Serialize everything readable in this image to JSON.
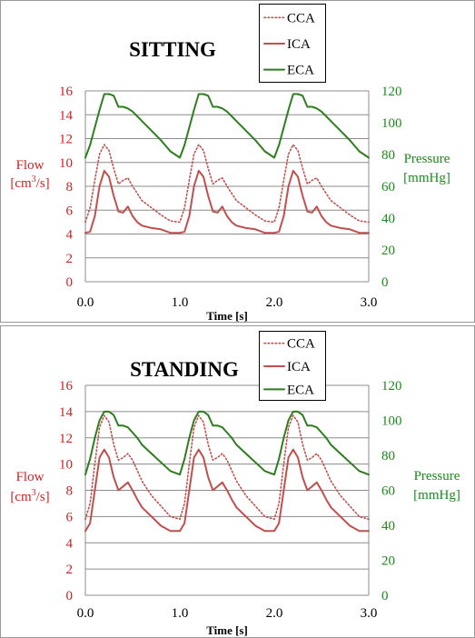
{
  "chart_data": [
    {
      "type": "line",
      "title": "SITTING",
      "xlabel": "Time [s]",
      "ylabel": "Flow [cm³/s]",
      "ylabel_parts": [
        "Flow",
        "[cm",
        "3",
        "/s]"
      ],
      "y2label": "Pressure [mmHg]",
      "y2label_parts": [
        "Pressure",
        "[mmHg]"
      ],
      "xlim": [
        0,
        3
      ],
      "ylim": [
        0,
        16
      ],
      "y2lim": [
        0,
        120
      ],
      "xticks": [
        "0.0",
        "1.0",
        "2.0",
        "3.0"
      ],
      "xtick_values": [
        0,
        1,
        2,
        3
      ],
      "yticks": [
        "0",
        "2",
        "4",
        "6",
        "8",
        "10",
        "12",
        "14",
        "16"
      ],
      "ytick_values": [
        0,
        2,
        4,
        6,
        8,
        10,
        12,
        14,
        16
      ],
      "y2ticks": [
        "0",
        "20",
        "40",
        "60",
        "80",
        "100",
        "120"
      ],
      "y2tick_values": [
        0,
        20,
        40,
        60,
        80,
        100,
        120
      ],
      "grid": true,
      "legend_position": "top-right",
      "series": [
        {
          "name": "CCA",
          "axis": "left",
          "color": "#c0504d",
          "style": "dotted",
          "x": [
            0.0,
            0.05,
            0.1,
            0.15,
            0.2,
            0.25,
            0.3,
            0.35,
            0.4,
            0.45,
            0.5,
            0.55,
            0.6,
            0.7,
            0.8,
            0.9,
            1.0
          ],
          "y": [
            5.0,
            6.2,
            8.5,
            10.7,
            11.5,
            11.0,
            9.5,
            8.2,
            8.5,
            8.7,
            8.0,
            7.4,
            6.8,
            6.2,
            5.6,
            5.1,
            5.0
          ]
        },
        {
          "name": "ICA",
          "axis": "left",
          "color": "#c0504d",
          "style": "solid",
          "x": [
            0.0,
            0.05,
            0.1,
            0.15,
            0.2,
            0.25,
            0.3,
            0.35,
            0.4,
            0.45,
            0.5,
            0.55,
            0.6,
            0.7,
            0.8,
            0.9,
            1.0
          ],
          "y": [
            4.1,
            4.2,
            5.5,
            8.0,
            9.3,
            8.8,
            7.2,
            5.9,
            5.8,
            6.3,
            5.5,
            5.0,
            4.7,
            4.5,
            4.4,
            4.1,
            4.1
          ]
        },
        {
          "name": "ECA",
          "axis": "right",
          "color": "#2e7d1f",
          "style": "solid",
          "x": [
            0.0,
            0.05,
            0.1,
            0.15,
            0.2,
            0.25,
            0.3,
            0.35,
            0.4,
            0.45,
            0.5,
            0.55,
            0.6,
            0.7,
            0.8,
            0.9,
            1.0
          ],
          "y": [
            78,
            86,
            97,
            108,
            118,
            118,
            117,
            110,
            110,
            109,
            107,
            104,
            101,
            95,
            89,
            82,
            78
          ]
        }
      ]
    },
    {
      "type": "line",
      "title": "STANDING",
      "xlabel": "Time [s]",
      "ylabel": "Flow [cm³/s]",
      "ylabel_parts": [
        "Flow",
        "[cm",
        "3",
        "/s]"
      ],
      "y2label": "Pressure [mmHg]",
      "y2label_parts": [
        "Pressure",
        "[mmHg]"
      ],
      "xlim": [
        0,
        3
      ],
      "ylim": [
        0,
        16
      ],
      "y2lim": [
        0,
        120
      ],
      "xticks": [
        "0.0",
        "1.0",
        "2.0",
        "3.0"
      ],
      "xtick_values": [
        0,
        1,
        2,
        3
      ],
      "yticks": [
        "0",
        "2",
        "4",
        "6",
        "8",
        "10",
        "12",
        "14",
        "16"
      ],
      "ytick_values": [
        0,
        2,
        4,
        6,
        8,
        10,
        12,
        14,
        16
      ],
      "y2ticks": [
        "0",
        "20",
        "40",
        "60",
        "80",
        "100",
        "120"
      ],
      "y2tick_values": [
        0,
        20,
        40,
        60,
        80,
        100,
        120
      ],
      "grid": true,
      "legend_position": "top-right",
      "series": [
        {
          "name": "CCA",
          "axis": "left",
          "color": "#c0504d",
          "style": "dotted",
          "x": [
            0.0,
            0.05,
            0.1,
            0.15,
            0.2,
            0.25,
            0.3,
            0.35,
            0.4,
            0.45,
            0.5,
            0.55,
            0.6,
            0.7,
            0.8,
            0.9,
            1.0
          ],
          "y": [
            5.8,
            7.0,
            10.0,
            12.8,
            13.7,
            13.2,
            11.5,
            10.3,
            10.5,
            10.8,
            10.3,
            9.5,
            8.7,
            7.6,
            6.8,
            6.0,
            5.8
          ]
        },
        {
          "name": "ICA",
          "axis": "left",
          "color": "#c0504d",
          "style": "solid",
          "x": [
            0.0,
            0.05,
            0.1,
            0.15,
            0.2,
            0.25,
            0.3,
            0.35,
            0.4,
            0.45,
            0.5,
            0.55,
            0.6,
            0.7,
            0.8,
            0.9,
            1.0
          ],
          "y": [
            4.9,
            5.5,
            8.0,
            10.5,
            11.1,
            10.5,
            9.0,
            8.0,
            8.3,
            8.6,
            8.0,
            7.3,
            6.7,
            6.0,
            5.3,
            4.9,
            4.9
          ]
        },
        {
          "name": "ECA",
          "axis": "right",
          "color": "#2e7d1f",
          "style": "solid",
          "x": [
            0.0,
            0.05,
            0.1,
            0.15,
            0.2,
            0.25,
            0.3,
            0.35,
            0.4,
            0.45,
            0.5,
            0.55,
            0.6,
            0.7,
            0.8,
            0.9,
            1.0
          ],
          "y": [
            69,
            78,
            90,
            100,
            105,
            105,
            103,
            97,
            97,
            96,
            93,
            90,
            86,
            81,
            76,
            71,
            69
          ]
        }
      ]
    }
  ]
}
